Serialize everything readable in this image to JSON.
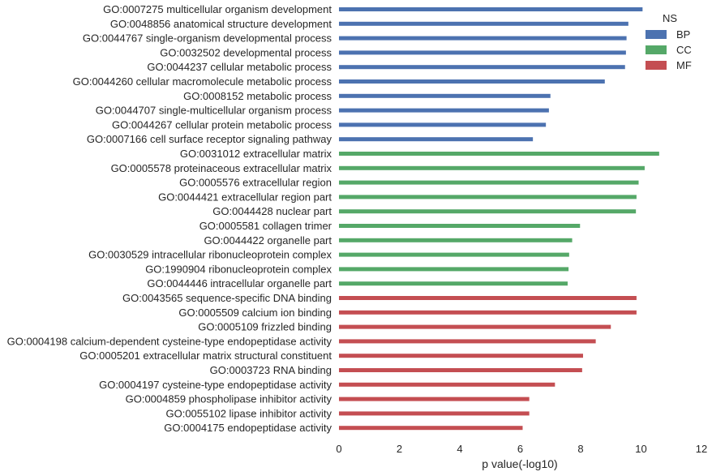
{
  "chart_data": {
    "type": "bar",
    "orientation": "horizontal",
    "xlabel": "p value(-log10)",
    "xlim": [
      0,
      12
    ],
    "xticks": [
      0,
      2,
      4,
      6,
      8,
      10,
      12
    ],
    "grid": false,
    "legend": {
      "title": "NS",
      "placement": "top-right",
      "entries": [
        {
          "name": "BP",
          "color": "#4c72b0"
        },
        {
          "name": "CC",
          "color": "#55a868"
        },
        {
          "name": "MF",
          "color": "#c44e52"
        }
      ]
    },
    "categories": [
      "GO:0007275 multicellular organism development",
      "GO:0048856 anatomical structure development",
      "GO:0044767 single-organism developmental process",
      "GO:0032502 developmental process",
      "GO:0044237 cellular metabolic process",
      "GO:0044260 cellular macromolecule metabolic process",
      "GO:0008152 metabolic process",
      "GO:0044707 single-multicellular organism process",
      "GO:0044267 cellular protein metabolic process",
      "GO:0007166 cell surface receptor signaling pathway",
      "GO:0031012 extracellular matrix",
      "GO:0005578 proteinaceous extracellular matrix",
      "GO:0005576 extracellular region",
      "GO:0044421 extracellular region part",
      "GO:0044428 nuclear part",
      "GO:0005581 collagen trimer",
      "GO:0044422 organelle part",
      "GO:0030529 intracellular ribonucleoprotein complex",
      "GO:1990904 ribonucleoprotein complex",
      "GO:0044446 intracellular organelle part",
      "GO:0043565 sequence-specific DNA binding",
      "GO:0005509 calcium ion binding",
      "GO:0005109 frizzled binding",
      "GO:0004198 calcium-dependent cysteine-type endopeptidase activity",
      "GO:0005201 extracellular matrix structural constituent",
      "GO:0003723 RNA binding",
      "GO:0004197 cysteine-type endopeptidase activity",
      "GO:0004859 phospholipase inhibitor activity",
      "GO:0055102 lipase inhibitor activity",
      "GO:0004175 endopeptidase activity"
    ],
    "values": [
      10.05,
      9.58,
      9.52,
      9.5,
      9.47,
      8.8,
      7.0,
      6.95,
      6.85,
      6.42,
      10.6,
      10.12,
      9.92,
      9.85,
      9.83,
      7.98,
      7.72,
      7.62,
      7.6,
      7.57,
      9.85,
      9.85,
      9.0,
      8.5,
      8.08,
      8.05,
      7.15,
      6.3,
      6.3,
      6.08
    ],
    "groups": [
      "BP",
      "BP",
      "BP",
      "BP",
      "BP",
      "BP",
      "BP",
      "BP",
      "BP",
      "BP",
      "CC",
      "CC",
      "CC",
      "CC",
      "CC",
      "CC",
      "CC",
      "CC",
      "CC",
      "CC",
      "MF",
      "MF",
      "MF",
      "MF",
      "MF",
      "MF",
      "MF",
      "MF",
      "MF",
      "MF"
    ]
  }
}
